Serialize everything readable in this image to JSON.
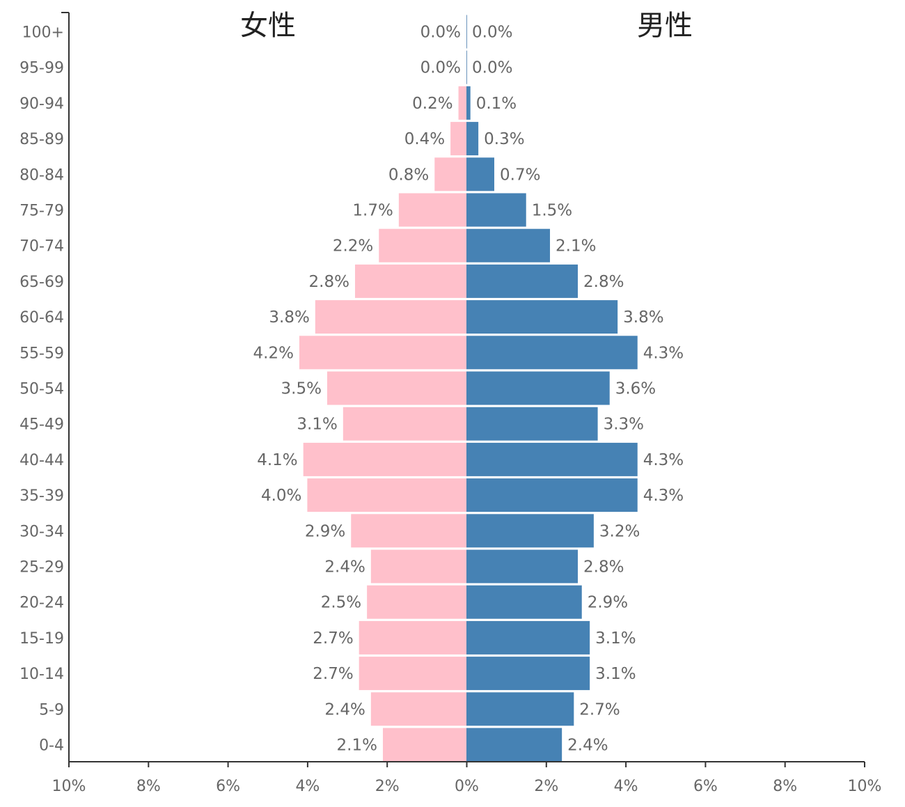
{
  "chart_data": {
    "type": "bar",
    "orientation": "horizontal-pyramid",
    "categories": [
      "100+",
      "95-99",
      "90-94",
      "85-89",
      "80-84",
      "75-79",
      "70-74",
      "65-69",
      "60-64",
      "55-59",
      "50-54",
      "45-49",
      "40-44",
      "35-39",
      "30-34",
      "25-29",
      "20-24",
      "15-19",
      "10-14",
      "5-9",
      "0-4"
    ],
    "series": [
      {
        "name": "女性",
        "side": "left",
        "color": "#ffc0cb",
        "values": [
          0.0,
          0.0,
          0.2,
          0.4,
          0.8,
          1.7,
          2.2,
          2.8,
          3.8,
          4.2,
          3.5,
          3.1,
          4.1,
          4.0,
          2.9,
          2.4,
          2.5,
          2.7,
          2.7,
          2.4,
          2.1
        ],
        "labels": [
          "0.0%",
          "0.0%",
          "0.2%",
          "0.4%",
          "0.8%",
          "1.7%",
          "2.2%",
          "2.8%",
          "3.8%",
          "4.2%",
          "3.5%",
          "3.1%",
          "4.1%",
          "4.0%",
          "2.9%",
          "2.4%",
          "2.5%",
          "2.7%",
          "2.7%",
          "2.4%",
          "2.1%"
        ]
      },
      {
        "name": "男性",
        "side": "right",
        "color": "#4682b4",
        "values": [
          0.0,
          0.0,
          0.1,
          0.3,
          0.7,
          1.5,
          2.1,
          2.8,
          3.8,
          4.3,
          3.6,
          3.3,
          4.3,
          4.3,
          3.2,
          2.8,
          2.9,
          3.1,
          3.1,
          2.7,
          2.4
        ],
        "labels": [
          "0.0%",
          "0.0%",
          "0.1%",
          "0.3%",
          "0.7%",
          "1.5%",
          "2.1%",
          "2.8%",
          "3.8%",
          "4.3%",
          "3.6%",
          "3.3%",
          "4.3%",
          "4.3%",
          "3.2%",
          "2.8%",
          "2.9%",
          "3.1%",
          "3.1%",
          "2.7%",
          "2.4%"
        ]
      }
    ],
    "xlim": [
      -10,
      10
    ],
    "xticks": [
      "10%",
      "8%",
      "6%",
      "4%",
      "2%",
      "0%",
      "2%",
      "4%",
      "6%",
      "8%",
      "10%"
    ],
    "xlabel": "",
    "ylabel": "",
    "grid": false,
    "titles": {
      "left": "女性",
      "right": "男性"
    }
  }
}
